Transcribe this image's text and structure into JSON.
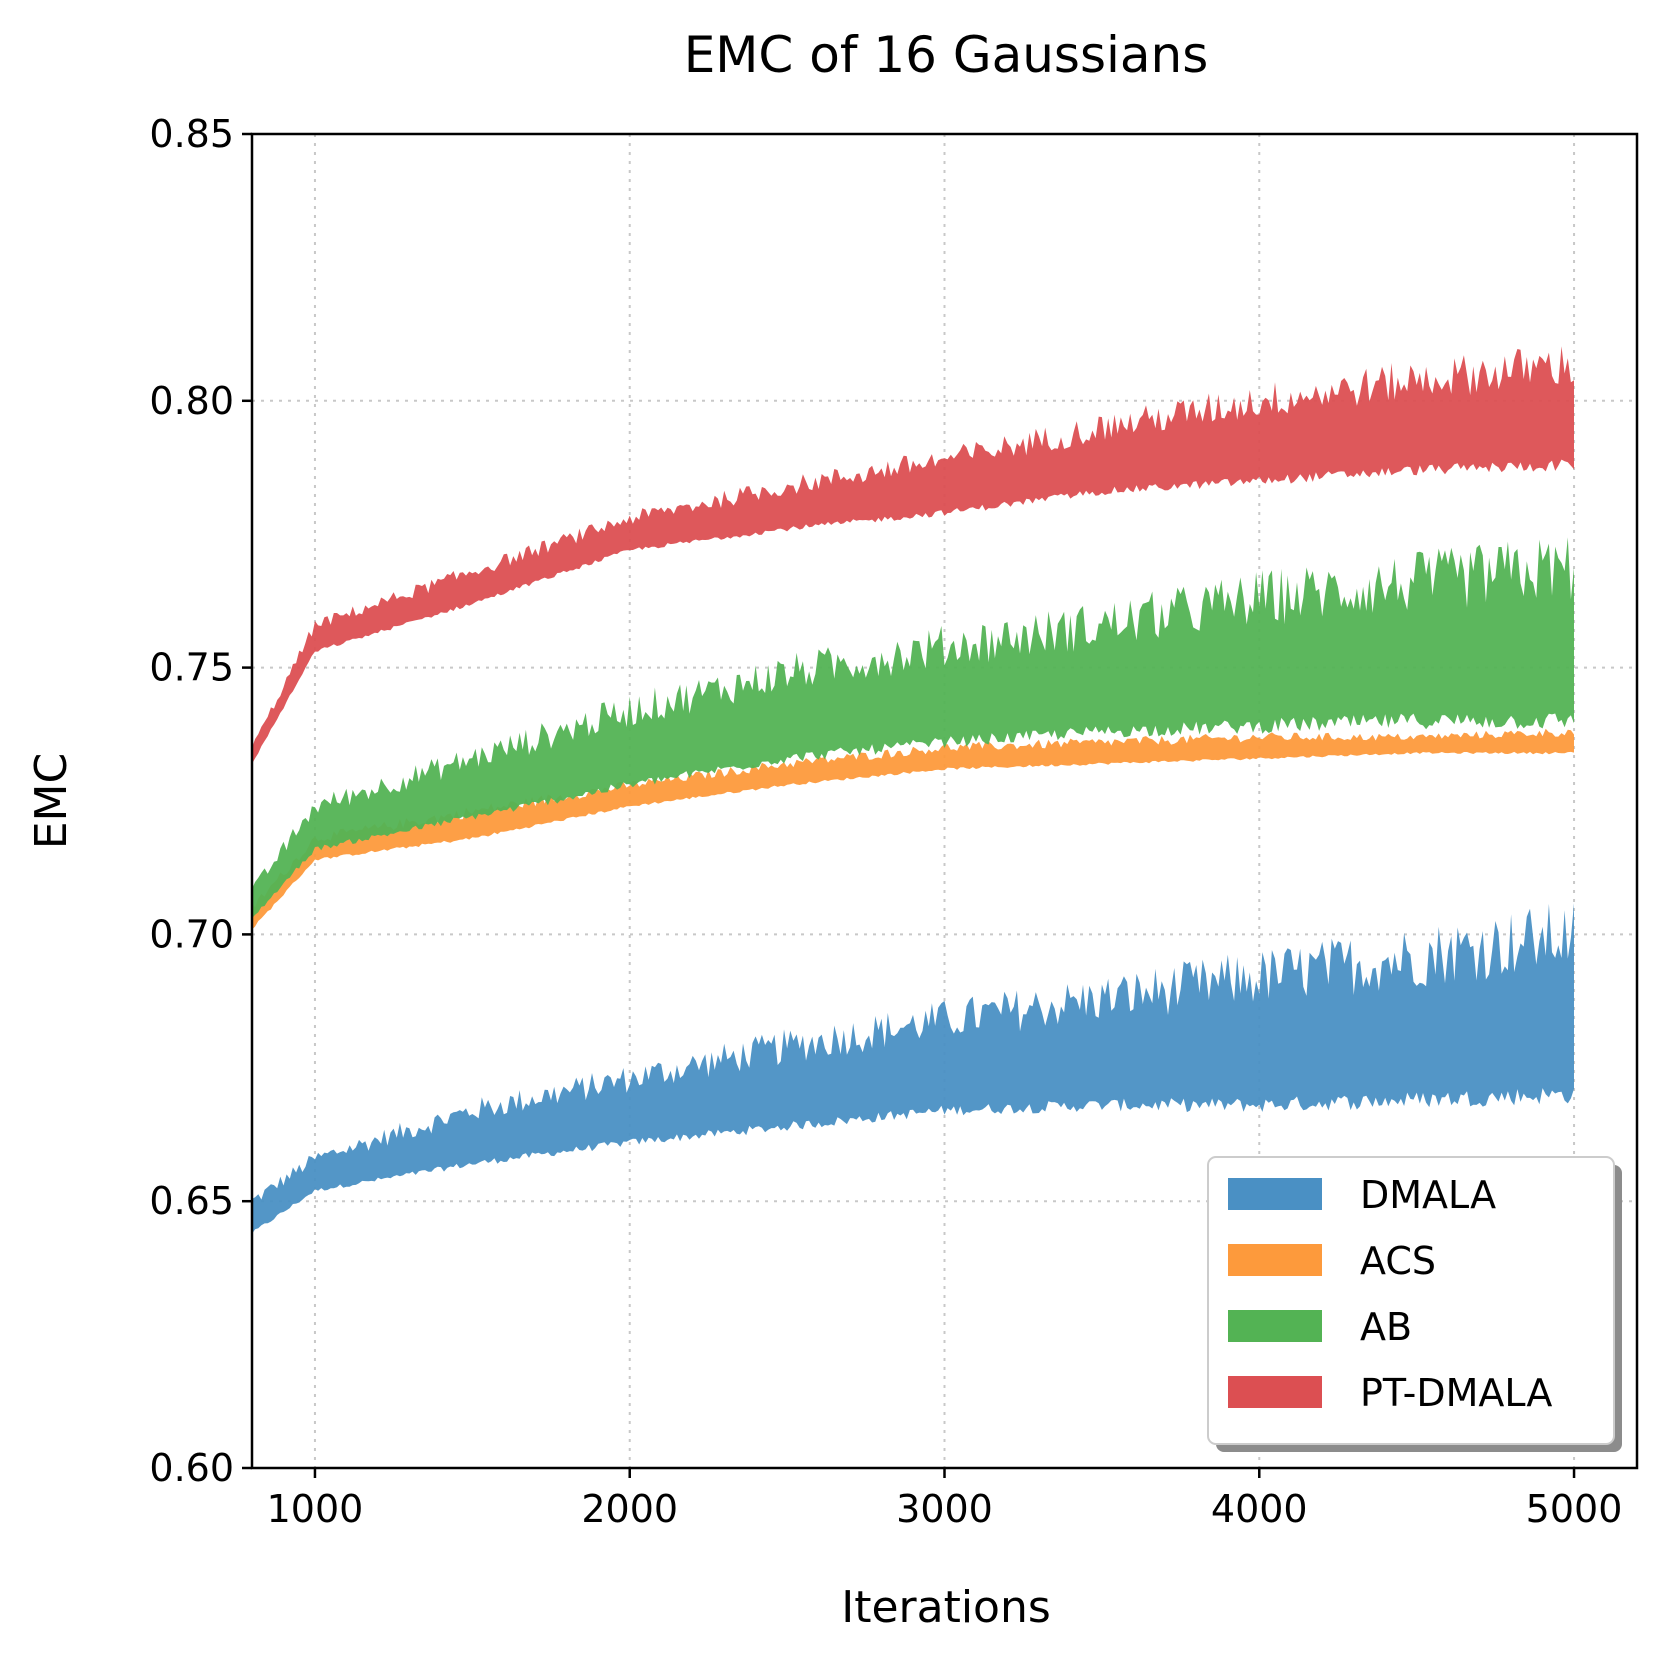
{
  "chart_data": {
    "type": "area",
    "title": "EMC of 16 Gaussians",
    "xlabel": "Iterations",
    "ylabel": "EMC",
    "xlim": [
      800,
      5200
    ],
    "ylim": [
      0.6,
      0.85
    ],
    "xticks": [
      1000,
      2000,
      3000,
      4000,
      5000
    ],
    "xtick_labels": [
      "1000",
      "2000",
      "3000",
      "4000",
      "5000"
    ],
    "yticks": [
      0.6,
      0.65,
      0.7,
      0.75,
      0.8,
      0.85
    ],
    "ytick_labels": [
      "0.60",
      "0.65",
      "0.70",
      "0.75",
      "0.80",
      "0.85"
    ],
    "grid": true,
    "legend_position": "lower-right",
    "x": [
      800,
      1000,
      1500,
      2000,
      2500,
      3000,
      3500,
      4000,
      4500,
      5000
    ],
    "series": [
      {
        "name": "DMALA",
        "color": "#4a90c4",
        "lower": [
          0.644,
          0.652,
          0.657,
          0.661,
          0.664,
          0.667,
          0.668,
          0.668,
          0.669,
          0.67
        ],
        "upper": [
          0.65,
          0.658,
          0.667,
          0.673,
          0.679,
          0.684,
          0.688,
          0.692,
          0.696,
          0.7
        ]
      },
      {
        "name": "ACS",
        "color": "#fd9a3c",
        "lower": [
          0.701,
          0.714,
          0.718,
          0.724,
          0.728,
          0.731,
          0.732,
          0.733,
          0.734,
          0.734
        ],
        "upper": [
          0.705,
          0.718,
          0.723,
          0.728,
          0.732,
          0.735,
          0.736,
          0.737,
          0.737,
          0.738
        ]
      },
      {
        "name": "AB",
        "color": "#53b354",
        "lower": [
          0.703,
          0.716,
          0.722,
          0.728,
          0.733,
          0.736,
          0.738,
          0.739,
          0.74,
          0.74
        ],
        "upper": [
          0.708,
          0.724,
          0.733,
          0.742,
          0.749,
          0.754,
          0.758,
          0.763,
          0.766,
          0.769
        ]
      },
      {
        "name": "PT-DMALA",
        "color": "#dc4f52",
        "lower": [
          0.732,
          0.753,
          0.762,
          0.772,
          0.776,
          0.779,
          0.783,
          0.785,
          0.787,
          0.788
        ],
        "upper": [
          0.735,
          0.758,
          0.768,
          0.778,
          0.784,
          0.789,
          0.795,
          0.8,
          0.804,
          0.807
        ]
      }
    ]
  }
}
